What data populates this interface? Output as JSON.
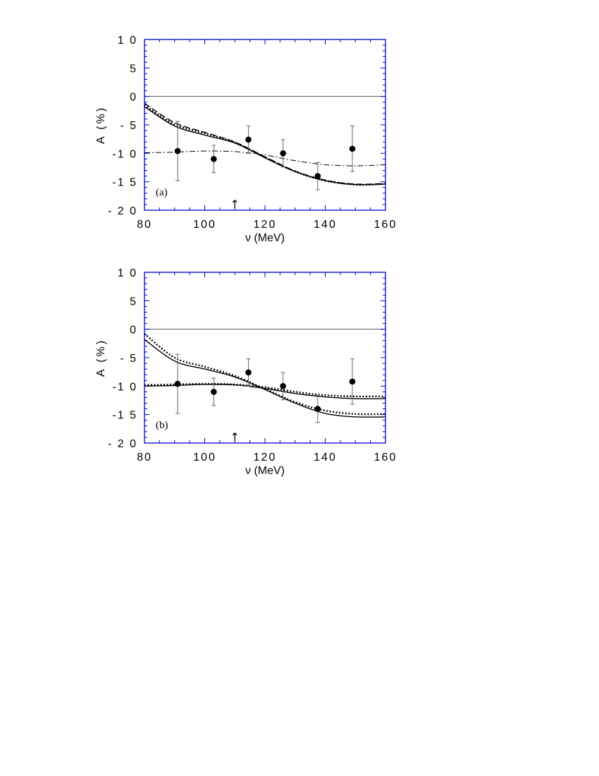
{
  "chart_data": [
    {
      "type": "line",
      "panel_label": "(a)",
      "xlabel": "ν (MeV)",
      "ylabel": "A (%)",
      "xlim": [
        80,
        160
      ],
      "ylim": [
        -20,
        10
      ],
      "xticks": [
        80,
        100,
        120,
        140,
        160
      ],
      "yticks": [
        10,
        5,
        0,
        -5,
        -10,
        -15,
        -20
      ],
      "ytick_labels": [
        "1 0",
        "5",
        "0",
        "- 5",
        "-1 0",
        "-1 5",
        "- 2 0"
      ],
      "xtick_labels": [
        "80",
        "100",
        "120",
        "140",
        "160"
      ],
      "arrow_marker": {
        "x": 110,
        "glyph": "↑"
      },
      "colors": {
        "frame": "#0000cc",
        "curves": "#000000",
        "zero_line": "#555555"
      },
      "data_points": {
        "x": [
          91,
          103,
          114.5,
          126,
          137.5,
          149
        ],
        "y": [
          -9.6,
          -11,
          -7.6,
          -10,
          -14,
          -9.2
        ],
        "yerr_low": [
          5.2,
          2.4,
          2.4,
          2.4,
          2.4,
          4.0
        ],
        "yerr_high": [
          5.2,
          2.4,
          2.4,
          2.4,
          2.4,
          4.0
        ]
      },
      "series": [
        {
          "style": "solid",
          "x": [
            80,
            90,
            100,
            110,
            120,
            130,
            140,
            150,
            160
          ],
          "y": [
            -1.8,
            -5.2,
            -6.8,
            -8.2,
            -10.8,
            -13.2,
            -14.8,
            -15.5,
            -15.4
          ]
        },
        {
          "style": "dashed",
          "x": [
            80,
            90,
            100,
            110,
            120,
            130,
            140,
            150,
            160
          ],
          "y": [
            -1.2,
            -4.6,
            -6.3,
            -8.0,
            -10.6,
            -13.1,
            -14.7,
            -15.4,
            -15.3
          ]
        },
        {
          "style": "dotted",
          "x": [
            80,
            90,
            100,
            110,
            120,
            130,
            140,
            150,
            160
          ],
          "y": [
            -1.5,
            -4.9,
            -6.5,
            -8.1,
            -10.7,
            -13.2,
            -14.8,
            -15.5,
            -15.4
          ]
        },
        {
          "style": "dash-dot",
          "x": [
            80,
            90,
            100,
            110,
            120,
            130,
            140,
            150,
            160
          ],
          "y": [
            -9.9,
            -9.8,
            -9.6,
            -9.7,
            -10.3,
            -11.3,
            -12.0,
            -12.2,
            -12.0
          ]
        }
      ]
    },
    {
      "type": "line",
      "panel_label": "(b)",
      "xlabel": "ν (MeV)",
      "ylabel": "A (%)",
      "xlim": [
        80,
        160
      ],
      "ylim": [
        -20,
        10
      ],
      "xticks": [
        80,
        100,
        120,
        140,
        160
      ],
      "yticks": [
        10,
        5,
        0,
        -5,
        -10,
        -15,
        -20
      ],
      "ytick_labels": [
        "1 0",
        "5",
        "0",
        "- 5",
        "-1 0",
        "-1 5",
        "- 2 0"
      ],
      "xtick_labels": [
        "80",
        "100",
        "120",
        "140",
        "160"
      ],
      "arrow_marker": {
        "x": 110,
        "glyph": "↑"
      },
      "colors": {
        "frame": "#0000cc",
        "curves": "#000000",
        "zero_line": "#555555"
      },
      "data_points": {
        "x": [
          91,
          103,
          114.5,
          126,
          137.5,
          149
        ],
        "y": [
          -9.6,
          -11,
          -7.6,
          -10,
          -14,
          -9.2
        ],
        "yerr_low": [
          5.2,
          2.4,
          2.4,
          2.4,
          2.4,
          4.0
        ],
        "yerr_high": [
          5.2,
          2.4,
          2.4,
          2.4,
          2.4,
          4.0
        ]
      },
      "series": [
        {
          "style": "solid",
          "x": [
            80,
            90,
            100,
            110,
            120,
            130,
            140,
            150,
            160
          ],
          "y": [
            -1.8,
            -5.6,
            -7.0,
            -8.4,
            -10.6,
            -13.0,
            -14.8,
            -15.4,
            -15.4
          ]
        },
        {
          "style": "dotted",
          "x": [
            80,
            90,
            100,
            110,
            120,
            130,
            140,
            150,
            160
          ],
          "y": [
            -0.8,
            -5.0,
            -6.6,
            -8.2,
            -10.5,
            -12.8,
            -14.3,
            -14.9,
            -14.9
          ]
        },
        {
          "style": "solid",
          "x": [
            80,
            90,
            100,
            110,
            120,
            130,
            140,
            150,
            160
          ],
          "y": [
            -10.0,
            -9.9,
            -9.7,
            -9.8,
            -10.4,
            -11.3,
            -11.9,
            -12.2,
            -12.2
          ]
        },
        {
          "style": "dotted",
          "x": [
            80,
            90,
            100,
            110,
            120,
            130,
            140,
            150,
            160
          ],
          "y": [
            -9.8,
            -9.7,
            -9.6,
            -9.7,
            -10.2,
            -11.0,
            -11.6,
            -11.8,
            -11.8
          ]
        }
      ]
    }
  ]
}
